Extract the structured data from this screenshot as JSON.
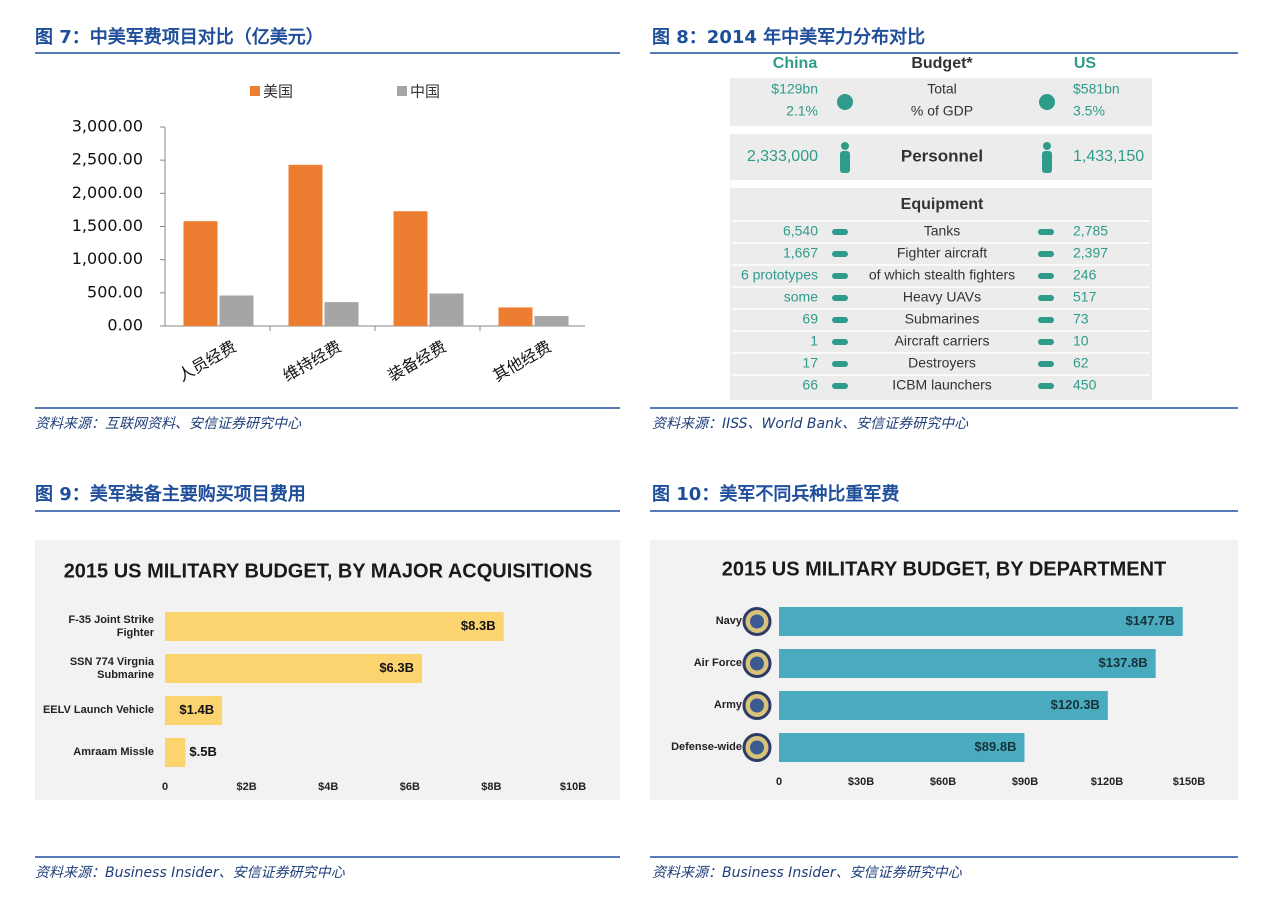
{
  "chart_data": [
    {
      "type": "bar",
      "caption": "图 7：中美军费项目对比（亿美元）",
      "source": "资料来源：互联网资料、安信证券研究中心",
      "categories": [
        "人员经费",
        "维持经费",
        "装备经费",
        "其他经费"
      ],
      "series": [
        {
          "name": "美国",
          "color": "#ed7d31",
          "values": [
            1580,
            2430,
            1730,
            280
          ]
        },
        {
          "name": "中国",
          "color": "#a5a5a5",
          "values": [
            460,
            360,
            490,
            150
          ]
        }
      ],
      "ylim": [
        0,
        3000
      ],
      "yticks": [
        {
          "value": 0,
          "label": "0.00"
        },
        {
          "value": 500,
          "label": "500.00"
        },
        {
          "value": 1000,
          "label": "1,000.00"
        },
        {
          "value": 1500,
          "label": "1,500.00"
        },
        {
          "value": 2000,
          "label": "2,000.00"
        },
        {
          "value": 2500,
          "label": "2,500.00"
        },
        {
          "value": 3000,
          "label": "3,000.00"
        }
      ]
    },
    {
      "type": "hbar",
      "caption": "图 9：美军装备主要购买项目费用",
      "source": "资料来源：Business Insider、安信证券研究中心",
      "title": "2015 US MILITARY BUDGET, BY MAJOR ACQUISITIONS",
      "categories": [
        "F-35 Joint Strike Fighter",
        "SSN 774 Virgnia Submarine",
        "EELV Launch Vehicle",
        "Amraam Missle"
      ],
      "values": [
        8.3,
        6.3,
        1.4,
        0.5
      ],
      "value_labels": [
        "$8.3B",
        "$6.3B",
        "$1.4B",
        "$.5B"
      ],
      "color": "#fcd46f",
      "xlim": [
        0,
        10
      ],
      "xticks": [
        0,
        {
          "value": 2,
          "label": "$2B"
        },
        {
          "value": 4,
          "label": "$4B"
        },
        {
          "value": 6,
          "label": "$6B"
        },
        {
          "value": 8,
          "label": "$8B"
        },
        {
          "value": 10,
          "label": "$10B"
        }
      ]
    },
    {
      "type": "hbar",
      "caption": "图 10：美军不同兵种比重军费",
      "source": "资料来源：Business Insider、安信证券研究中心",
      "title": "2015 US MILITARY BUDGET, BY DEPARTMENT",
      "categories": [
        "Navy",
        "Air Force",
        "Army",
        "Defense-wide"
      ],
      "values": [
        147.7,
        137.8,
        120.3,
        89.8
      ],
      "value_labels": [
        "$147.7B",
        "$137.8B",
        "$120.3B",
        "$89.8B"
      ],
      "color": "#4aabbf",
      "xlim": [
        0,
        150
      ],
      "xticks": [
        0,
        {
          "value": 30,
          "label": "$30B"
        },
        {
          "value": 60,
          "label": "$60B"
        },
        {
          "value": 90,
          "label": "$90B"
        },
        {
          "value": 120,
          "label": "$120B"
        },
        {
          "value": 150,
          "label": "$150B"
        }
      ]
    }
  ],
  "infographic": {
    "caption": "图 8：2014 年中美军力分布对比",
    "source": "资料来源：IISS、World Bank、安信证券研究中心",
    "header": [
      "China",
      "Budget*",
      "US"
    ],
    "budget": [
      [
        "$129bn",
        "Total",
        "$581bn"
      ],
      [
        "2.1%",
        "% of GDP",
        "3.5%"
      ]
    ],
    "personnel": [
      "2,333,000",
      "Personnel",
      "1,433,150"
    ],
    "equipment_title": "Equipment",
    "equipment": [
      [
        "6,540",
        "Tanks",
        "2,785"
      ],
      [
        "1,667",
        "Fighter aircraft",
        "2,397"
      ],
      [
        "6 prototypes",
        "of which stealth fighters",
        "246"
      ],
      [
        "some",
        "Heavy UAVs",
        "517"
      ],
      [
        "69",
        "Submarines",
        "73"
      ],
      [
        "1",
        "Aircraft carriers",
        "10"
      ],
      [
        "17",
        "Destroyers",
        "62"
      ],
      [
        "66",
        "ICBM launchers",
        "450"
      ]
    ]
  }
}
